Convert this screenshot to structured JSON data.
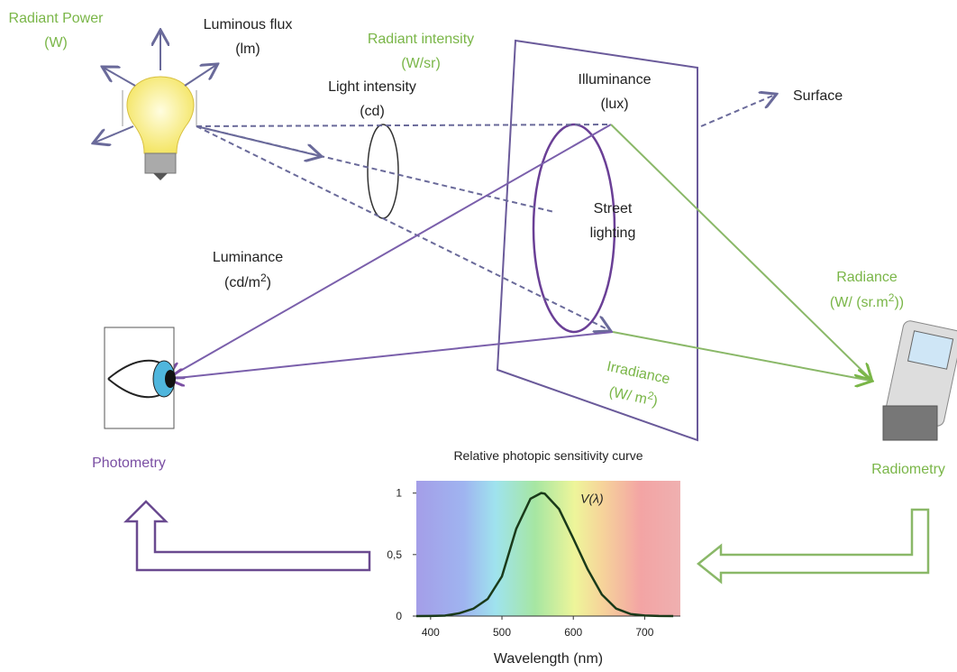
{
  "labels": {
    "radiant_power": [
      "Radiant Power",
      "(W)"
    ],
    "luminous_flux": [
      "Luminous flux",
      "(lm)"
    ],
    "radiant_intensity": [
      "Radiant intensity",
      "(W/sr)"
    ],
    "light_intensity": [
      "Light intensity",
      "(cd)"
    ],
    "illuminance": [
      "Illuminance",
      "(lux)"
    ],
    "surface": "Surface",
    "street_lighting": [
      "Street",
      "lighting"
    ],
    "luminance": {
      "name": "Luminance",
      "unit": [
        "(cd/m",
        "2",
        ")"
      ]
    },
    "radiance": {
      "name": "Radiance",
      "unit": [
        "(W/ (sr.m",
        "2",
        "))"
      ]
    },
    "irradiance": {
      "name": "Irradiance",
      "unit": [
        "(W/ m",
        "2",
        ")"
      ]
    },
    "photometry": "Photometry",
    "radiometry": "Radiometry"
  },
  "chart_data": {
    "type": "line",
    "title": "Relative photopic sensitivity curve",
    "x_label": "Wavelength (nm)",
    "x": [
      380,
      400,
      420,
      440,
      460,
      480,
      500,
      520,
      540,
      555,
      560,
      580,
      600,
      620,
      640,
      660,
      680,
      700,
      720,
      740
    ],
    "series": [
      {
        "name": "V(λ)",
        "color": "#1a3a1a",
        "values": [
          4e-05,
          0.0004,
          0.004,
          0.023,
          0.06,
          0.139,
          0.323,
          0.71,
          0.954,
          1.0,
          0.995,
          0.87,
          0.631,
          0.381,
          0.175,
          0.061,
          0.017,
          0.0041,
          0.001,
          0.00025
        ]
      }
    ],
    "xlim": [
      380,
      750
    ],
    "ylim": [
      0,
      1.1
    ],
    "xticks": [
      400,
      500,
      600,
      700
    ],
    "yticks": [
      0,
      {
        "value": 0.5,
        "label": "0,5"
      },
      1
    ]
  }
}
